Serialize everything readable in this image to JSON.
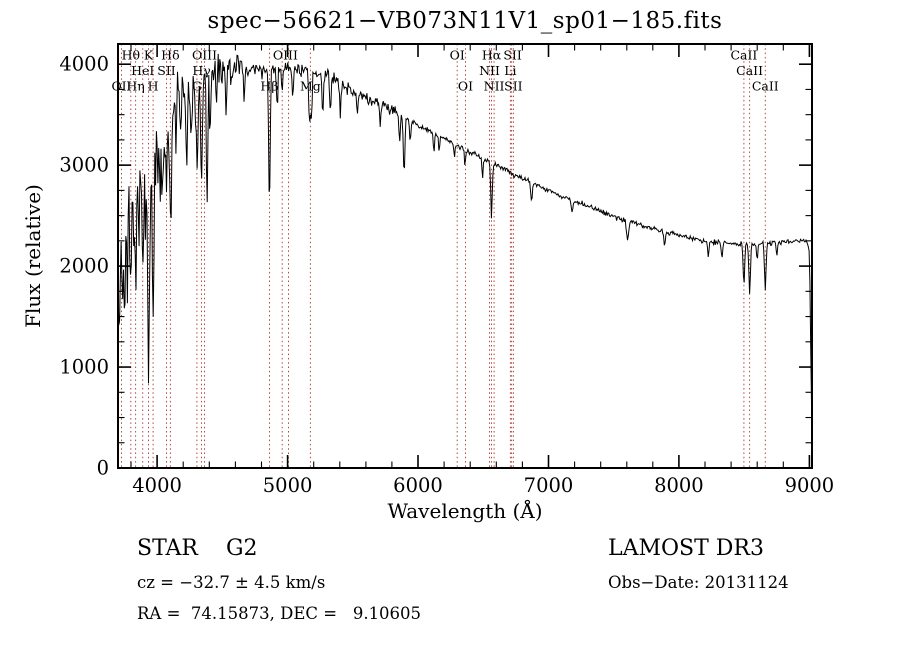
{
  "title": "spec−56621−VB073N11V1_sp01−185.fits",
  "footer": {
    "left": {
      "class_line": "STAR    G2",
      "cz_line": "cz = −32.7 ± 4.5 km/s",
      "coord_line": "RA =  74.15873, DEC =   9.10605"
    },
    "right": {
      "survey_line": "LAMOST DR3",
      "obsdate_line": "Obs−Date: 20131124"
    }
  },
  "colors": {
    "background": "#ffffff",
    "spectrum": "#000000",
    "frame": "#000000",
    "marker_line": "#b04a42",
    "label_text": "#000000"
  },
  "chart_data": {
    "type": "line",
    "title": "spec−56621−VB073N11V1_sp01−185.fits",
    "xlabel": "Wavelength (Å)",
    "ylabel": "Flux (relative)",
    "xlim": [
      3700,
      9020
    ],
    "ylim": [
      0,
      4200
    ],
    "x_ticks": [
      4000,
      5000,
      6000,
      7000,
      8000,
      9000
    ],
    "y_ticks": [
      0,
      1000,
      2000,
      3000,
      4000
    ],
    "x_minor_step": 200,
    "y_minor_step": 250,
    "grid": false,
    "sample_step": 6,
    "noise_seed": 42,
    "noise_regions": [
      [
        3700,
        4200,
        260
      ],
      [
        4200,
        4650,
        140
      ],
      [
        4650,
        5900,
        55
      ],
      [
        5900,
        9020,
        20
      ]
    ],
    "continuum": [
      [
        3700,
        1700
      ],
      [
        3715,
        2300
      ],
      [
        3730,
        2550
      ],
      [
        3770,
        2750
      ],
      [
        3820,
        2800
      ],
      [
        3870,
        2950
      ],
      [
        3920,
        3000
      ],
      [
        3970,
        3050
      ],
      [
        4020,
        3200
      ],
      [
        4080,
        3400
      ],
      [
        4150,
        3600
      ],
      [
        4250,
        3750
      ],
      [
        4350,
        3850
      ],
      [
        4450,
        3920
      ],
      [
        4550,
        3950
      ],
      [
        4650,
        3960
      ],
      [
        4750,
        3950
      ],
      [
        4850,
        3940
      ],
      [
        4950,
        3960
      ],
      [
        5050,
        3940
      ],
      [
        5150,
        3930
      ],
      [
        5250,
        3900
      ],
      [
        5350,
        3850
      ],
      [
        5450,
        3780
      ],
      [
        5550,
        3700
      ],
      [
        5650,
        3650
      ],
      [
        5750,
        3580
      ],
      [
        5850,
        3520
      ],
      [
        5950,
        3430
      ],
      [
        6050,
        3360
      ],
      [
        6150,
        3300
      ],
      [
        6250,
        3230
      ],
      [
        6350,
        3160
      ],
      [
        6450,
        3100
      ],
      [
        6550,
        3030
      ],
      [
        6650,
        2970
      ],
      [
        6750,
        2900
      ],
      [
        6850,
        2840
      ],
      [
        6950,
        2780
      ],
      [
        7050,
        2720
      ],
      [
        7150,
        2670
      ],
      [
        7250,
        2620
      ],
      [
        7350,
        2570
      ],
      [
        7450,
        2520
      ],
      [
        7550,
        2470
      ],
      [
        7650,
        2430
      ],
      [
        7750,
        2390
      ],
      [
        7850,
        2350
      ],
      [
        7950,
        2320
      ],
      [
        8050,
        2290
      ],
      [
        8150,
        2260
      ],
      [
        8250,
        2240
      ],
      [
        8350,
        2230
      ],
      [
        8450,
        2220
      ],
      [
        8550,
        2215
      ],
      [
        8650,
        2225
      ],
      [
        8750,
        2235
      ],
      [
        8850,
        2245
      ],
      [
        8930,
        2255
      ],
      [
        8985,
        2230
      ],
      [
        9000,
        2140
      ],
      [
        9006,
        1700
      ],
      [
        9012,
        950
      ],
      [
        9020,
        320
      ]
    ],
    "absorption_lines": [
      [
        3712,
        850,
        5
      ],
      [
        3734,
        750,
        5
      ],
      [
        3750,
        1150,
        5
      ],
      [
        3771,
        950,
        5
      ],
      [
        3798,
        1000,
        6
      ],
      [
        3820,
        550,
        5
      ],
      [
        3835,
        1050,
        6
      ],
      [
        3860,
        600,
        5
      ],
      [
        3889,
        950,
        6
      ],
      [
        3910,
        500,
        5
      ],
      [
        3934,
        1950,
        7
      ],
      [
        3969,
        1600,
        7
      ],
      [
        4005,
        420,
        5
      ],
      [
        4026,
        470,
        5
      ],
      [
        4045,
        520,
        5
      ],
      [
        4072,
        430,
        5
      ],
      [
        4102,
        1150,
        6
      ],
      [
        4144,
        520,
        5
      ],
      [
        4180,
        380,
        5
      ],
      [
        4227,
        680,
        5
      ],
      [
        4260,
        470,
        5
      ],
      [
        4305,
        780,
        8
      ],
      [
        4340,
        1050,
        6
      ],
      [
        4383,
        1250,
        5
      ],
      [
        4405,
        570,
        5
      ],
      [
        4458,
        380,
        5
      ],
      [
        4528,
        440,
        5
      ],
      [
        4668,
        330,
        5
      ],
      [
        4861,
        1320,
        6
      ],
      [
        4920,
        390,
        5
      ],
      [
        4957,
        260,
        4
      ],
      [
        5041,
        270,
        4
      ],
      [
        5168,
        520,
        6
      ],
      [
        5183,
        460,
        5
      ],
      [
        5270,
        430,
        5
      ],
      [
        5328,
        310,
        5
      ],
      [
        5405,
        270,
        5
      ],
      [
        5535,
        250,
        5
      ],
      [
        5710,
        210,
        5
      ],
      [
        5860,
        260,
        5
      ],
      [
        5893,
        540,
        6
      ],
      [
        5940,
        210,
        5
      ],
      [
        6122,
        190,
        4
      ],
      [
        6162,
        190,
        4
      ],
      [
        6280,
        160,
        4
      ],
      [
        6360,
        150,
        4
      ],
      [
        6495,
        210,
        4
      ],
      [
        6563,
        520,
        6
      ],
      [
        6870,
        180,
        7
      ],
      [
        7180,
        130,
        6
      ],
      [
        7605,
        190,
        8
      ],
      [
        7890,
        130,
        6
      ],
      [
        8225,
        160,
        5
      ],
      [
        8330,
        160,
        5
      ],
      [
        8498,
        390,
        6
      ],
      [
        8542,
        490,
        6
      ],
      [
        8600,
        160,
        5
      ],
      [
        8662,
        440,
        6
      ],
      [
        8750,
        130,
        5
      ]
    ],
    "spectral_markers": {
      "lines": [
        3727,
        3798,
        3835,
        3889,
        3934,
        3969,
        4072,
        4102,
        4305,
        4340,
        4363,
        4861,
        4959,
        5007,
        5175,
        6300,
        6364,
        6548,
        6563,
        6583,
        6708,
        6717,
        6731,
        8498,
        8542,
        8662
      ],
      "labels": [
        {
          "text": "Hθ",
          "wl": 3798,
          "row": 1
        },
        {
          "text": "K",
          "wl": 3934,
          "row": 1
        },
        {
          "text": "Hδ",
          "wl": 4102,
          "row": 1
        },
        {
          "text": "OIII",
          "wl": 4363,
          "row": 1
        },
        {
          "text": "OIII",
          "wl": 4983,
          "row": 1
        },
        {
          "text": "OI",
          "wl": 6300,
          "row": 1
        },
        {
          "text": "Hα",
          "wl": 6563,
          "row": 1
        },
        {
          "text": "SII",
          "wl": 6725,
          "row": 1
        },
        {
          "text": "CaII",
          "wl": 8498,
          "row": 1
        },
        {
          "text": "HeI",
          "wl": 3889,
          "row": 2
        },
        {
          "text": "SII",
          "wl": 4072,
          "row": 2
        },
        {
          "text": "Hγ",
          "wl": 4340,
          "row": 2
        },
        {
          "text": "NII",
          "wl": 6548,
          "row": 2
        },
        {
          "text": "Li",
          "wl": 6708,
          "row": 2
        },
        {
          "text": "CaII",
          "wl": 8542,
          "row": 2
        },
        {
          "text": "OII",
          "wl": 3727,
          "row": 3
        },
        {
          "text": "Hη",
          "wl": 3835,
          "row": 3
        },
        {
          "text": "H",
          "wl": 3969,
          "row": 3
        },
        {
          "text": "G",
          "wl": 4305,
          "row": 3
        },
        {
          "text": "Hβ",
          "wl": 4861,
          "row": 3
        },
        {
          "text": "Mg",
          "wl": 5175,
          "row": 3
        },
        {
          "text": "OI",
          "wl": 6364,
          "row": 3
        },
        {
          "text": "NII",
          "wl": 6583,
          "row": 3
        },
        {
          "text": "SII",
          "wl": 6731,
          "row": 3
        },
        {
          "text": "CaII",
          "wl": 8662,
          "row": 3
        }
      ]
    }
  }
}
